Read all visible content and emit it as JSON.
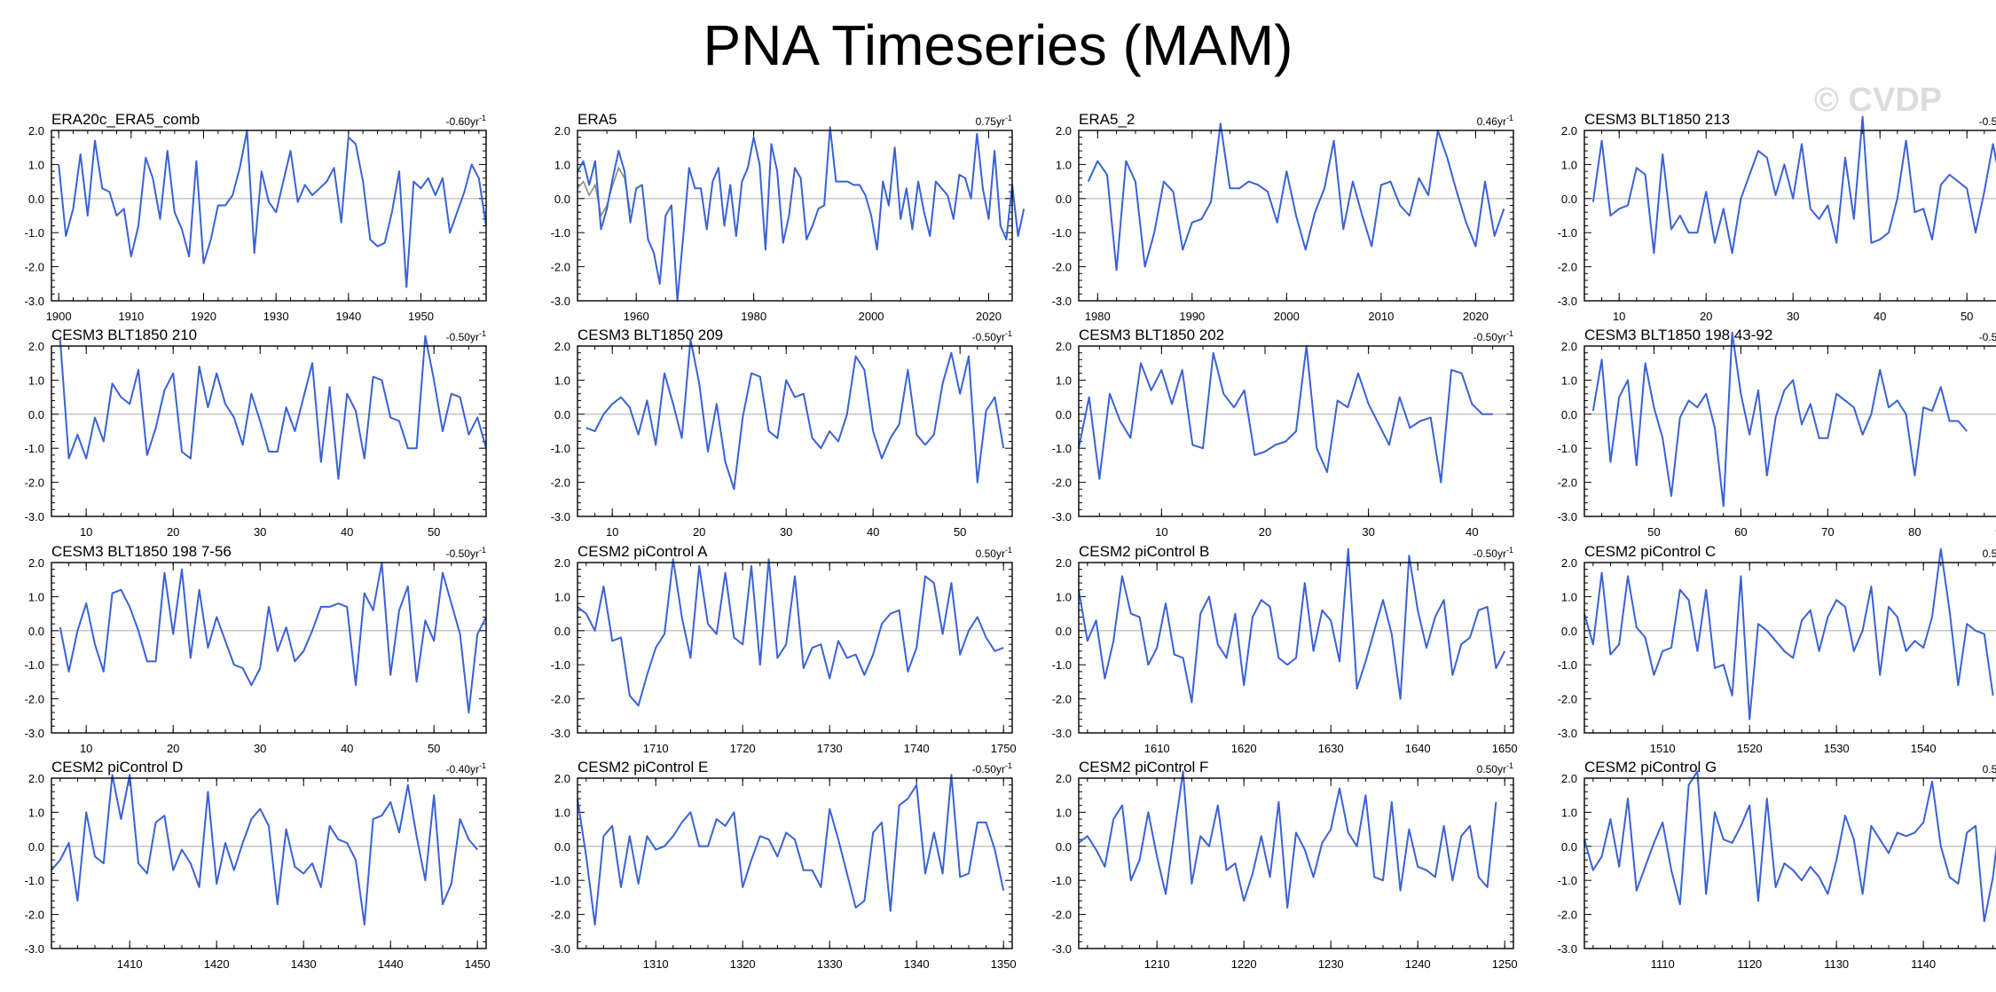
{
  "title": "PNA Timeseries (MAM)",
  "watermark": "© CVDP",
  "colors": {
    "series": "#3a62d6",
    "secondary": "#8a8a8a",
    "zero_line": "#b4b4b4",
    "axis": "#000000"
  },
  "chart_data": [
    {
      "type": "line",
      "name": "ERA20c_ERA5_comb",
      "trend": "-0.60yr",
      "trend_unit": "-1",
      "xlim": [
        1899,
        1959
      ],
      "ylim": [
        -3,
        2
      ],
      "xticks": [
        1900,
        1910,
        1920,
        1930,
        1940,
        1950
      ],
      "yticks": [
        "-3.0",
        "-2.0",
        "-1.0",
        "0.0",
        "1.0",
        "2.0"
      ],
      "x_start": 1900,
      "values": [
        1.0,
        -1.1,
        -0.3,
        1.3,
        -0.5,
        1.7,
        0.3,
        0.2,
        -0.5,
        -0.3,
        -1.7,
        -0.8,
        1.2,
        0.6,
        -0.6,
        1.4,
        -0.4,
        -0.9,
        -1.7,
        1.1,
        -1.9,
        -1.2,
        -0.2,
        -0.2,
        0.1,
        0.9,
        2.0,
        -1.6,
        0.8,
        -0.1,
        -0.4,
        0.5,
        1.4,
        -0.1,
        0.4,
        0.1,
        0.3,
        0.5,
        0.9,
        -0.7,
        1.8,
        1.6,
        0.5,
        -1.2,
        -1.4,
        -1.3,
        -0.4,
        0.8,
        -2.6,
        0.5,
        0.3,
        0.6,
        0.1,
        0.6,
        -1.0,
        -0.4,
        0.2,
        1.0,
        0.6,
        -0.8
      ]
    },
    {
      "type": "line",
      "name": "ERA5",
      "trend": "0.75yr",
      "trend_unit": "-1",
      "xlim": [
        1950,
        2024
      ],
      "ylim": [
        -3,
        2
      ],
      "xticks": [
        1960,
        1980,
        2000,
        2020
      ],
      "yticks": [
        "-3.0",
        "-2.0",
        "-1.0",
        "0.0",
        "1.0",
        "2.0"
      ],
      "x_start": 1950,
      "values": [
        0.8,
        1.1,
        0.4,
        1.1,
        -0.9,
        -0.3,
        0.6,
        1.4,
        0.8,
        -0.7,
        0.3,
        0.4,
        -1.2,
        -1.6,
        -2.5,
        -0.5,
        -0.2,
        -3.0,
        -1.1,
        0.9,
        0.3,
        0.3,
        -0.9,
        0.5,
        0.9,
        -0.8,
        0.4,
        -1.1,
        0.5,
        0.9,
        1.8,
        1.0,
        -1.5,
        1.6,
        0.8,
        -1.3,
        -0.5,
        0.9,
        0.6,
        -1.2,
        -0.8,
        -0.3,
        -0.2,
        2.1,
        0.5,
        0.5,
        0.5,
        0.4,
        0.4,
        0.1,
        -0.5,
        -1.5,
        0.5,
        -0.2,
        1.5,
        -0.6,
        0.3,
        -0.9,
        0.5,
        -0.4,
        -1.1,
        0.5,
        0.3,
        0.1,
        -0.6,
        0.7,
        0.6,
        0.0,
        1.9,
        0.3,
        -0.6,
        1.4,
        -0.8,
        -1.2,
        0.4,
        -1.1,
        -0.3
      ],
      "secondary_x_start": 1950,
      "secondary_values": [
        0.3,
        0.5,
        0.1,
        0.4,
        -0.5,
        -0.2,
        0.4,
        0.9,
        0.6,
        -0.4
      ]
    },
    {
      "type": "line",
      "name": "ERA5_2",
      "trend": "0.46yr",
      "trend_unit": "-1",
      "xlim": [
        1978,
        2024
      ],
      "ylim": [
        -3,
        2
      ],
      "xticks": [
        1980,
        1990,
        2000,
        2010,
        2020
      ],
      "yticks": [
        "-3.0",
        "-2.0",
        "-1.0",
        "0.0",
        "1.0",
        "2.0"
      ],
      "x_start": 1979,
      "values": [
        0.5,
        1.1,
        0.7,
        -2.1,
        1.1,
        0.5,
        -2.0,
        -1.0,
        0.5,
        0.2,
        -1.5,
        -0.7,
        -0.6,
        -0.1,
        2.2,
        0.3,
        0.3,
        0.5,
        0.4,
        0.2,
        -0.7,
        0.8,
        -0.5,
        -1.5,
        -0.4,
        0.3,
        1.7,
        -0.9,
        0.5,
        -0.5,
        -1.4,
        0.4,
        0.5,
        -0.2,
        -0.5,
        0.6,
        0.1,
        2.0,
        1.2,
        0.2,
        -0.7,
        -1.4,
        0.5,
        -1.1,
        -0.3
      ]
    },
    {
      "type": "line",
      "name": "CESM3 BLT1850 213",
      "trend": "-0.50yr",
      "trend_unit": "-1",
      "xlim": [
        6,
        56
      ],
      "ylim": [
        -3,
        2
      ],
      "xticks": [
        10,
        20,
        30,
        40,
        50
      ],
      "yticks": [
        "-3.0",
        "-2.0",
        "-1.0",
        "0.0",
        "1.0",
        "2.0"
      ],
      "x_start": 7,
      "values": [
        -0.1,
        1.7,
        -0.5,
        -0.3,
        -0.2,
        0.9,
        0.7,
        -1.6,
        1.3,
        -0.9,
        -0.5,
        -1.0,
        -1.0,
        0.2,
        -1.3,
        -0.3,
        -1.6,
        0.0,
        0.7,
        1.4,
        1.2,
        0.1,
        1.0,
        0.0,
        1.6,
        -0.3,
        -0.6,
        -0.2,
        -1.3,
        1.2,
        -0.6,
        2.4,
        -1.3,
        -1.2,
        -1.0,
        0.0,
        1.7,
        -0.4,
        -0.3,
        -1.2,
        0.4,
        0.7,
        0.5,
        0.3,
        -1.0,
        0.2,
        1.6,
        0.3,
        -1.1,
        -0.9,
        0.5
      ]
    },
    {
      "type": "line",
      "name": "CESM3 BLT1850 210",
      "trend": "-0.50yr",
      "trend_unit": "-1",
      "xlim": [
        6,
        56
      ],
      "ylim": [
        -3,
        2
      ],
      "xticks": [
        10,
        20,
        30,
        40,
        50
      ],
      "yticks": [
        "-3.0",
        "-2.0",
        "-1.0",
        "0.0",
        "1.0",
        "2.0"
      ],
      "x_start": 7,
      "values": [
        2.2,
        -1.3,
        -0.6,
        -1.3,
        -0.1,
        -0.8,
        0.9,
        0.5,
        0.3,
        1.3,
        -1.2,
        -0.4,
        0.7,
        1.2,
        -1.1,
        -1.3,
        1.4,
        0.2,
        1.2,
        0.3,
        -0.1,
        -0.9,
        0.6,
        -0.2,
        -1.1,
        -1.1,
        0.2,
        -0.5,
        0.5,
        1.5,
        -1.4,
        0.8,
        -1.9,
        0.6,
        0.1,
        -1.3,
        1.1,
        1.0,
        -0.1,
        -0.2,
        -1.0,
        -1.0,
        2.3,
        1.0,
        -0.5,
        0.6,
        0.5,
        -0.6,
        -0.1,
        -1.0
      ]
    },
    {
      "type": "line",
      "name": "CESM3 BLT1850 209",
      "trend": "-0.50yr",
      "trend_unit": "-1",
      "xlim": [
        6,
        56
      ],
      "ylim": [
        -3,
        2
      ],
      "xticks": [
        10,
        20,
        30,
        40,
        50
      ],
      "yticks": [
        "-3.0",
        "-2.0",
        "-1.0",
        "0.0",
        "1.0",
        "2.0"
      ],
      "x_start": 7,
      "values": [
        -0.4,
        -0.5,
        0.0,
        0.3,
        0.5,
        0.2,
        -0.6,
        0.4,
        -0.9,
        1.2,
        0.3,
        -0.7,
        2.2,
        0.9,
        -1.1,
        0.3,
        -1.4,
        -2.2,
        -0.1,
        1.2,
        1.1,
        -0.5,
        -0.7,
        1.0,
        0.5,
        0.6,
        -0.7,
        -1.0,
        -0.5,
        -0.8,
        0.0,
        1.7,
        1.3,
        -0.5,
        -1.3,
        -0.7,
        -0.3,
        1.3,
        -0.6,
        -0.9,
        -0.6,
        0.9,
        1.8,
        0.6,
        1.7,
        -2.0,
        0.1,
        0.5,
        -1.0
      ]
    },
    {
      "type": "line",
      "name": "CESM3 BLT1850 202",
      "trend": "-0.50yr",
      "trend_unit": "-1",
      "xlim": [
        2,
        44
      ],
      "ylim": [
        -3,
        2
      ],
      "xticks": [
        10,
        20,
        30,
        40
      ],
      "yticks": [
        "-3.0",
        "-2.0",
        "-1.0",
        "0.0",
        "1.0",
        "2.0"
      ],
      "x_start": 2,
      "values": [
        -1.0,
        0.5,
        -1.9,
        0.6,
        -0.2,
        -0.7,
        1.5,
        0.7,
        1.3,
        0.3,
        1.3,
        -0.9,
        -1.0,
        1.8,
        0.6,
        0.2,
        0.7,
        -1.2,
        -1.1,
        -0.9,
        -0.8,
        -0.5,
        2.0,
        -1.0,
        -1.7,
        0.4,
        0.2,
        1.2,
        0.3,
        -0.3,
        -0.9,
        0.5,
        -0.4,
        -0.2,
        -0.1,
        -2.0,
        1.3,
        1.2,
        0.3,
        0.0,
        0.0
      ]
    },
    {
      "type": "line",
      "name": "CESM3 BLT1850 198 43-92",
      "trend": "-0.50yr",
      "trend_unit": "-1",
      "xlim": [
        42,
        92
      ],
      "ylim": [
        -3,
        2
      ],
      "xticks": [
        50,
        60,
        70,
        80,
        90
      ],
      "yticks": [
        "-3.0",
        "-2.0",
        "-1.0",
        "0.0",
        "1.0",
        "2.0"
      ],
      "x_start": 43,
      "values": [
        0.1,
        1.6,
        -1.4,
        0.5,
        1.0,
        -1.5,
        1.5,
        0.2,
        -0.7,
        -2.4,
        -0.1,
        0.4,
        0.2,
        0.6,
        -0.4,
        -2.7,
        2.4,
        0.6,
        -0.6,
        0.7,
        -1.8,
        -0.1,
        0.7,
        1.0,
        -0.3,
        0.3,
        -0.7,
        -0.7,
        0.6,
        0.4,
        0.2,
        -0.6,
        0.0,
        1.3,
        0.2,
        0.4,
        0.0,
        -1.8,
        0.2,
        0.1,
        0.8,
        -0.2,
        -0.2,
        -0.5
      ]
    },
    {
      "type": "line",
      "name": "CESM3 BLT1850 198 7-56",
      "trend": "-0.50yr",
      "trend_unit": "-1",
      "xlim": [
        6,
        56
      ],
      "ylim": [
        -3,
        2
      ],
      "xticks": [
        10,
        20,
        30,
        40,
        50
      ],
      "yticks": [
        "-3.0",
        "-2.0",
        "-1.0",
        "0.0",
        "1.0",
        "2.0"
      ],
      "x_start": 7,
      "values": [
        0.1,
        -1.2,
        0.0,
        0.8,
        -0.4,
        -1.2,
        1.1,
        1.2,
        0.7,
        0.0,
        -0.9,
        -0.9,
        1.7,
        -0.1,
        1.8,
        -0.8,
        1.2,
        -0.5,
        0.4,
        -0.3,
        -1.0,
        -1.1,
        -1.6,
        -1.1,
        0.7,
        -0.6,
        0.1,
        -0.9,
        -0.6,
        0.0,
        0.7,
        0.7,
        0.8,
        0.7,
        -1.6,
        1.1,
        0.6,
        2.0,
        -1.3,
        0.6,
        1.3,
        -1.5,
        0.3,
        -0.3,
        1.7,
        0.8,
        -0.1,
        -2.4,
        -0.1,
        0.4
      ]
    },
    {
      "type": "line",
      "name": "CESM2 piControl A",
      "trend": "0.50yr",
      "trend_unit": "-1",
      "xlim": [
        1701,
        1751
      ],
      "ylim": [
        -3,
        2
      ],
      "xticks": [
        1710,
        1720,
        1730,
        1740,
        1750
      ],
      "yticks": [
        "-3.0",
        "-2.0",
        "-1.0",
        "0.0",
        "1.0",
        "2.0"
      ],
      "x_start": 1701,
      "values": [
        0.7,
        0.5,
        0.0,
        1.3,
        -0.3,
        -0.2,
        -1.9,
        -2.2,
        -1.3,
        -0.5,
        -0.1,
        2.1,
        0.4,
        -0.8,
        1.9,
        0.2,
        -0.1,
        1.7,
        -0.2,
        -0.4,
        1.9,
        -1.0,
        2.1,
        -0.8,
        -0.4,
        1.6,
        -1.1,
        -0.5,
        -0.4,
        -1.4,
        -0.3,
        -0.8,
        -0.7,
        -1.3,
        -0.7,
        0.2,
        0.5,
        0.6,
        -1.2,
        -0.5,
        1.6,
        1.4,
        -0.1,
        1.4,
        -0.7,
        0.0,
        0.4,
        -0.2,
        -0.6,
        -0.5
      ]
    },
    {
      "type": "line",
      "name": "CESM2 piControl B",
      "trend": "-0.50yr",
      "trend_unit": "-1",
      "xlim": [
        1601,
        1651
      ],
      "ylim": [
        -3,
        2
      ],
      "xticks": [
        1610,
        1620,
        1630,
        1640,
        1650
      ],
      "yticks": [
        "-3.0",
        "-2.0",
        "-1.0",
        "0.0",
        "1.0",
        "2.0"
      ],
      "x_start": 1601,
      "values": [
        1.2,
        -0.3,
        0.3,
        -1.4,
        -0.3,
        1.6,
        0.5,
        0.4,
        -1.0,
        -0.5,
        0.8,
        -0.7,
        -0.8,
        -2.1,
        0.5,
        1.0,
        -0.4,
        -0.8,
        0.5,
        -1.6,
        0.4,
        0.9,
        0.7,
        -0.8,
        -1.0,
        -0.8,
        1.4,
        -0.6,
        0.6,
        0.3,
        -0.9,
        2.4,
        -1.7,
        -0.9,
        0.0,
        0.9,
        -0.1,
        -2.0,
        2.2,
        0.6,
        -0.5,
        0.4,
        0.9,
        -1.3,
        -0.4,
        -0.2,
        0.6,
        0.7,
        -1.1,
        -0.6
      ]
    },
    {
      "type": "line",
      "name": "CESM2 piControl C",
      "trend": "0.50yr",
      "trend_unit": "-1",
      "xlim": [
        1501,
        1551
      ],
      "ylim": [
        -3,
        2
      ],
      "xticks": [
        1510,
        1520,
        1530,
        1540,
        1550
      ],
      "yticks": [
        "-3.0",
        "-2.0",
        "-1.0",
        "0.0",
        "1.0",
        "2.0"
      ],
      "x_start": 1501,
      "values": [
        0.5,
        -0.4,
        1.7,
        -0.7,
        -0.4,
        1.6,
        0.1,
        -0.2,
        -1.3,
        -0.6,
        -0.5,
        1.2,
        0.9,
        -0.6,
        1.2,
        -1.1,
        -1.0,
        -1.9,
        1.6,
        -2.6,
        0.2,
        0.0,
        -0.3,
        -0.6,
        -0.8,
        0.3,
        0.6,
        -0.6,
        0.4,
        0.9,
        0.7,
        -0.6,
        0.0,
        1.3,
        -1.3,
        0.7,
        0.4,
        -0.6,
        -0.3,
        -0.5,
        0.4,
        2.4,
        0.6,
        -1.6,
        0.2,
        0.0,
        -0.1,
        -1.9
      ]
    },
    {
      "type": "line",
      "name": "CESM2 piControl D",
      "trend": "-0.40yr",
      "trend_unit": "-1",
      "xlim": [
        1401,
        1451
      ],
      "ylim": [
        -3,
        2
      ],
      "xticks": [
        1410,
        1420,
        1430,
        1440,
        1450
      ],
      "yticks": [
        "-3.0",
        "-2.0",
        "-1.0",
        "0.0",
        "1.0",
        "2.0"
      ],
      "x_start": 1401,
      "values": [
        -0.7,
        -0.4,
        0.1,
        -1.6,
        1.0,
        -0.3,
        -0.5,
        2.1,
        0.8,
        2.1,
        -0.5,
        -0.8,
        0.7,
        0.9,
        -0.7,
        -0.1,
        -0.5,
        -1.2,
        1.6,
        -1.1,
        0.1,
        -0.7,
        0.1,
        0.8,
        1.1,
        0.6,
        -1.7,
        0.5,
        -0.6,
        -0.8,
        -0.5,
        -1.2,
        0.6,
        0.2,
        0.1,
        -0.4,
        -2.3,
        0.8,
        0.9,
        1.3,
        0.4,
        1.8,
        0.3,
        -1.0,
        1.5,
        -1.7,
        -1.1,
        0.8,
        0.2,
        -0.1
      ]
    },
    {
      "type": "line",
      "name": "CESM2 piControl E",
      "trend": "-0.50yr",
      "trend_unit": "-1",
      "xlim": [
        1301,
        1351
      ],
      "ylim": [
        -3,
        2
      ],
      "xticks": [
        1310,
        1320,
        1330,
        1340,
        1350
      ],
      "yticks": [
        "-3.0",
        "-2.0",
        "-1.0",
        "0.0",
        "1.0",
        "2.0"
      ],
      "x_start": 1301,
      "values": [
        1.4,
        -0.3,
        -2.3,
        0.3,
        0.6,
        -1.2,
        0.3,
        -1.1,
        0.3,
        -0.1,
        0.0,
        0.3,
        0.7,
        1.0,
        0.0,
        0.0,
        0.8,
        0.6,
        1.0,
        -1.2,
        -0.4,
        0.3,
        0.2,
        -0.3,
        0.4,
        0.2,
        -0.7,
        -0.7,
        -1.2,
        1.1,
        0.2,
        -0.8,
        -1.8,
        -1.6,
        0.4,
        0.7,
        -1.9,
        1.2,
        1.4,
        1.8,
        -0.8,
        0.4,
        -0.8,
        2.1,
        -0.9,
        -0.8,
        0.7,
        0.7,
        -0.1,
        -1.3
      ]
    },
    {
      "type": "line",
      "name": "CESM2 piControl F",
      "trend": "0.50yr",
      "trend_unit": "-1",
      "xlim": [
        1201,
        1251
      ],
      "ylim": [
        -3,
        2
      ],
      "xticks": [
        1210,
        1220,
        1230,
        1240,
        1250
      ],
      "yticks": [
        "-3.0",
        "-2.0",
        "-1.0",
        "0.0",
        "1.0",
        "2.0"
      ],
      "x_start": 1201,
      "values": [
        0.1,
        0.3,
        -0.1,
        -0.6,
        0.8,
        1.2,
        -1.0,
        -0.4,
        1.0,
        -0.3,
        -1.4,
        0.4,
        2.2,
        -1.1,
        0.3,
        0.0,
        1.2,
        -0.7,
        -0.5,
        -1.6,
        -0.8,
        0.3,
        -0.9,
        1.3,
        -1.8,
        0.4,
        -0.1,
        -0.9,
        0.1,
        0.5,
        1.7,
        0.4,
        0.0,
        1.5,
        -0.9,
        -1.0,
        1.3,
        -1.3,
        0.5,
        -0.6,
        -0.7,
        -0.9,
        0.6,
        -1.0,
        0.3,
        0.6,
        -0.9,
        -1.2,
        1.3
      ]
    },
    {
      "type": "line",
      "name": "CESM2 piControl G",
      "trend": "0.50yr",
      "trend_unit": "-1",
      "xlim": [
        1101,
        1151
      ],
      "ylim": [
        -3,
        2
      ],
      "xticks": [
        1110,
        1120,
        1130,
        1140,
        1150
      ],
      "yticks": [
        "-3.0",
        "-2.0",
        "-1.0",
        "0.0",
        "1.0",
        "2.0"
      ],
      "x_start": 1101,
      "values": [
        0.2,
        -0.7,
        -0.3,
        0.8,
        -0.6,
        1.4,
        -1.3,
        -0.6,
        0.1,
        0.7,
        -0.7,
        -1.7,
        1.8,
        2.2,
        -1.4,
        1.0,
        0.2,
        0.1,
        0.6,
        1.2,
        -1.6,
        1.4,
        -1.2,
        -0.5,
        -0.7,
        -1.0,
        -0.6,
        -0.9,
        -1.4,
        -0.4,
        0.9,
        0.2,
        -1.4,
        0.6,
        0.2,
        -0.2,
        0.4,
        0.3,
        0.4,
        0.7,
        1.9,
        0.0,
        -0.9,
        -1.1,
        0.4,
        0.6,
        -2.2,
        -0.9,
        1.2
      ]
    }
  ]
}
